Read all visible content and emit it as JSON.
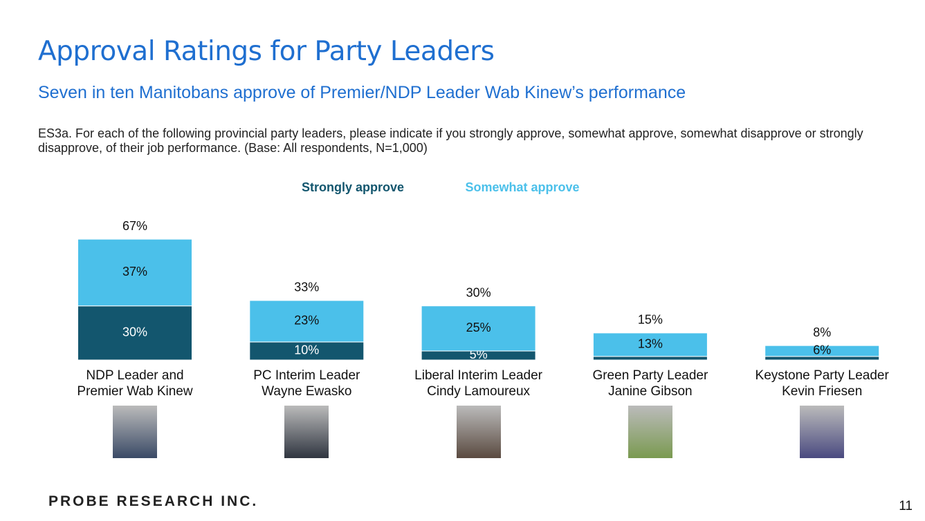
{
  "chart_data": {
    "type": "stacked_bar",
    "title": "Approval Ratings for Party Leaders",
    "subtitle": "Seven in ten Manitobans approve of Premier/NDP Leader Wab Kinew’s performance",
    "question": "ES3a. For each of the following provincial party leaders, please indicate if you strongly approve, somewhat approve, somewhat disapprove or strongly disapprove, of their job performance. (Base: All respondents, N=1,000)",
    "categories": [
      "NDP Leader and\nPremier Wab Kinew",
      "PC Interim Leader\nWayne Ewasko",
      "Liberal Interim Leader\nCindy Lamoureux",
      "Green Party Leader\nJanine Gibson",
      "Keystone Party Leader\nKevin Friesen"
    ],
    "series": [
      {
        "name": "Strongly approve",
        "color": "#13566e",
        "values": [
          30,
          10,
          5,
          2,
          2
        ],
        "value_labels": [
          "30%",
          "10%",
          "5%",
          null,
          null
        ]
      },
      {
        "name": "Somewhat approve",
        "color": "#4bc0ea",
        "values": [
          37,
          23,
          25,
          13,
          6
        ],
        "value_labels": [
          "37%",
          "23%",
          "25%",
          "13%",
          "6%"
        ]
      }
    ],
    "totals": [
      67,
      33,
      30,
      15,
      8
    ],
    "total_labels": [
      "67%",
      "33%",
      "30%",
      "15%",
      "8%"
    ],
    "footer": {
      "logo": "PROBE RESEARCH INC.",
      "page_number": "11"
    }
  }
}
